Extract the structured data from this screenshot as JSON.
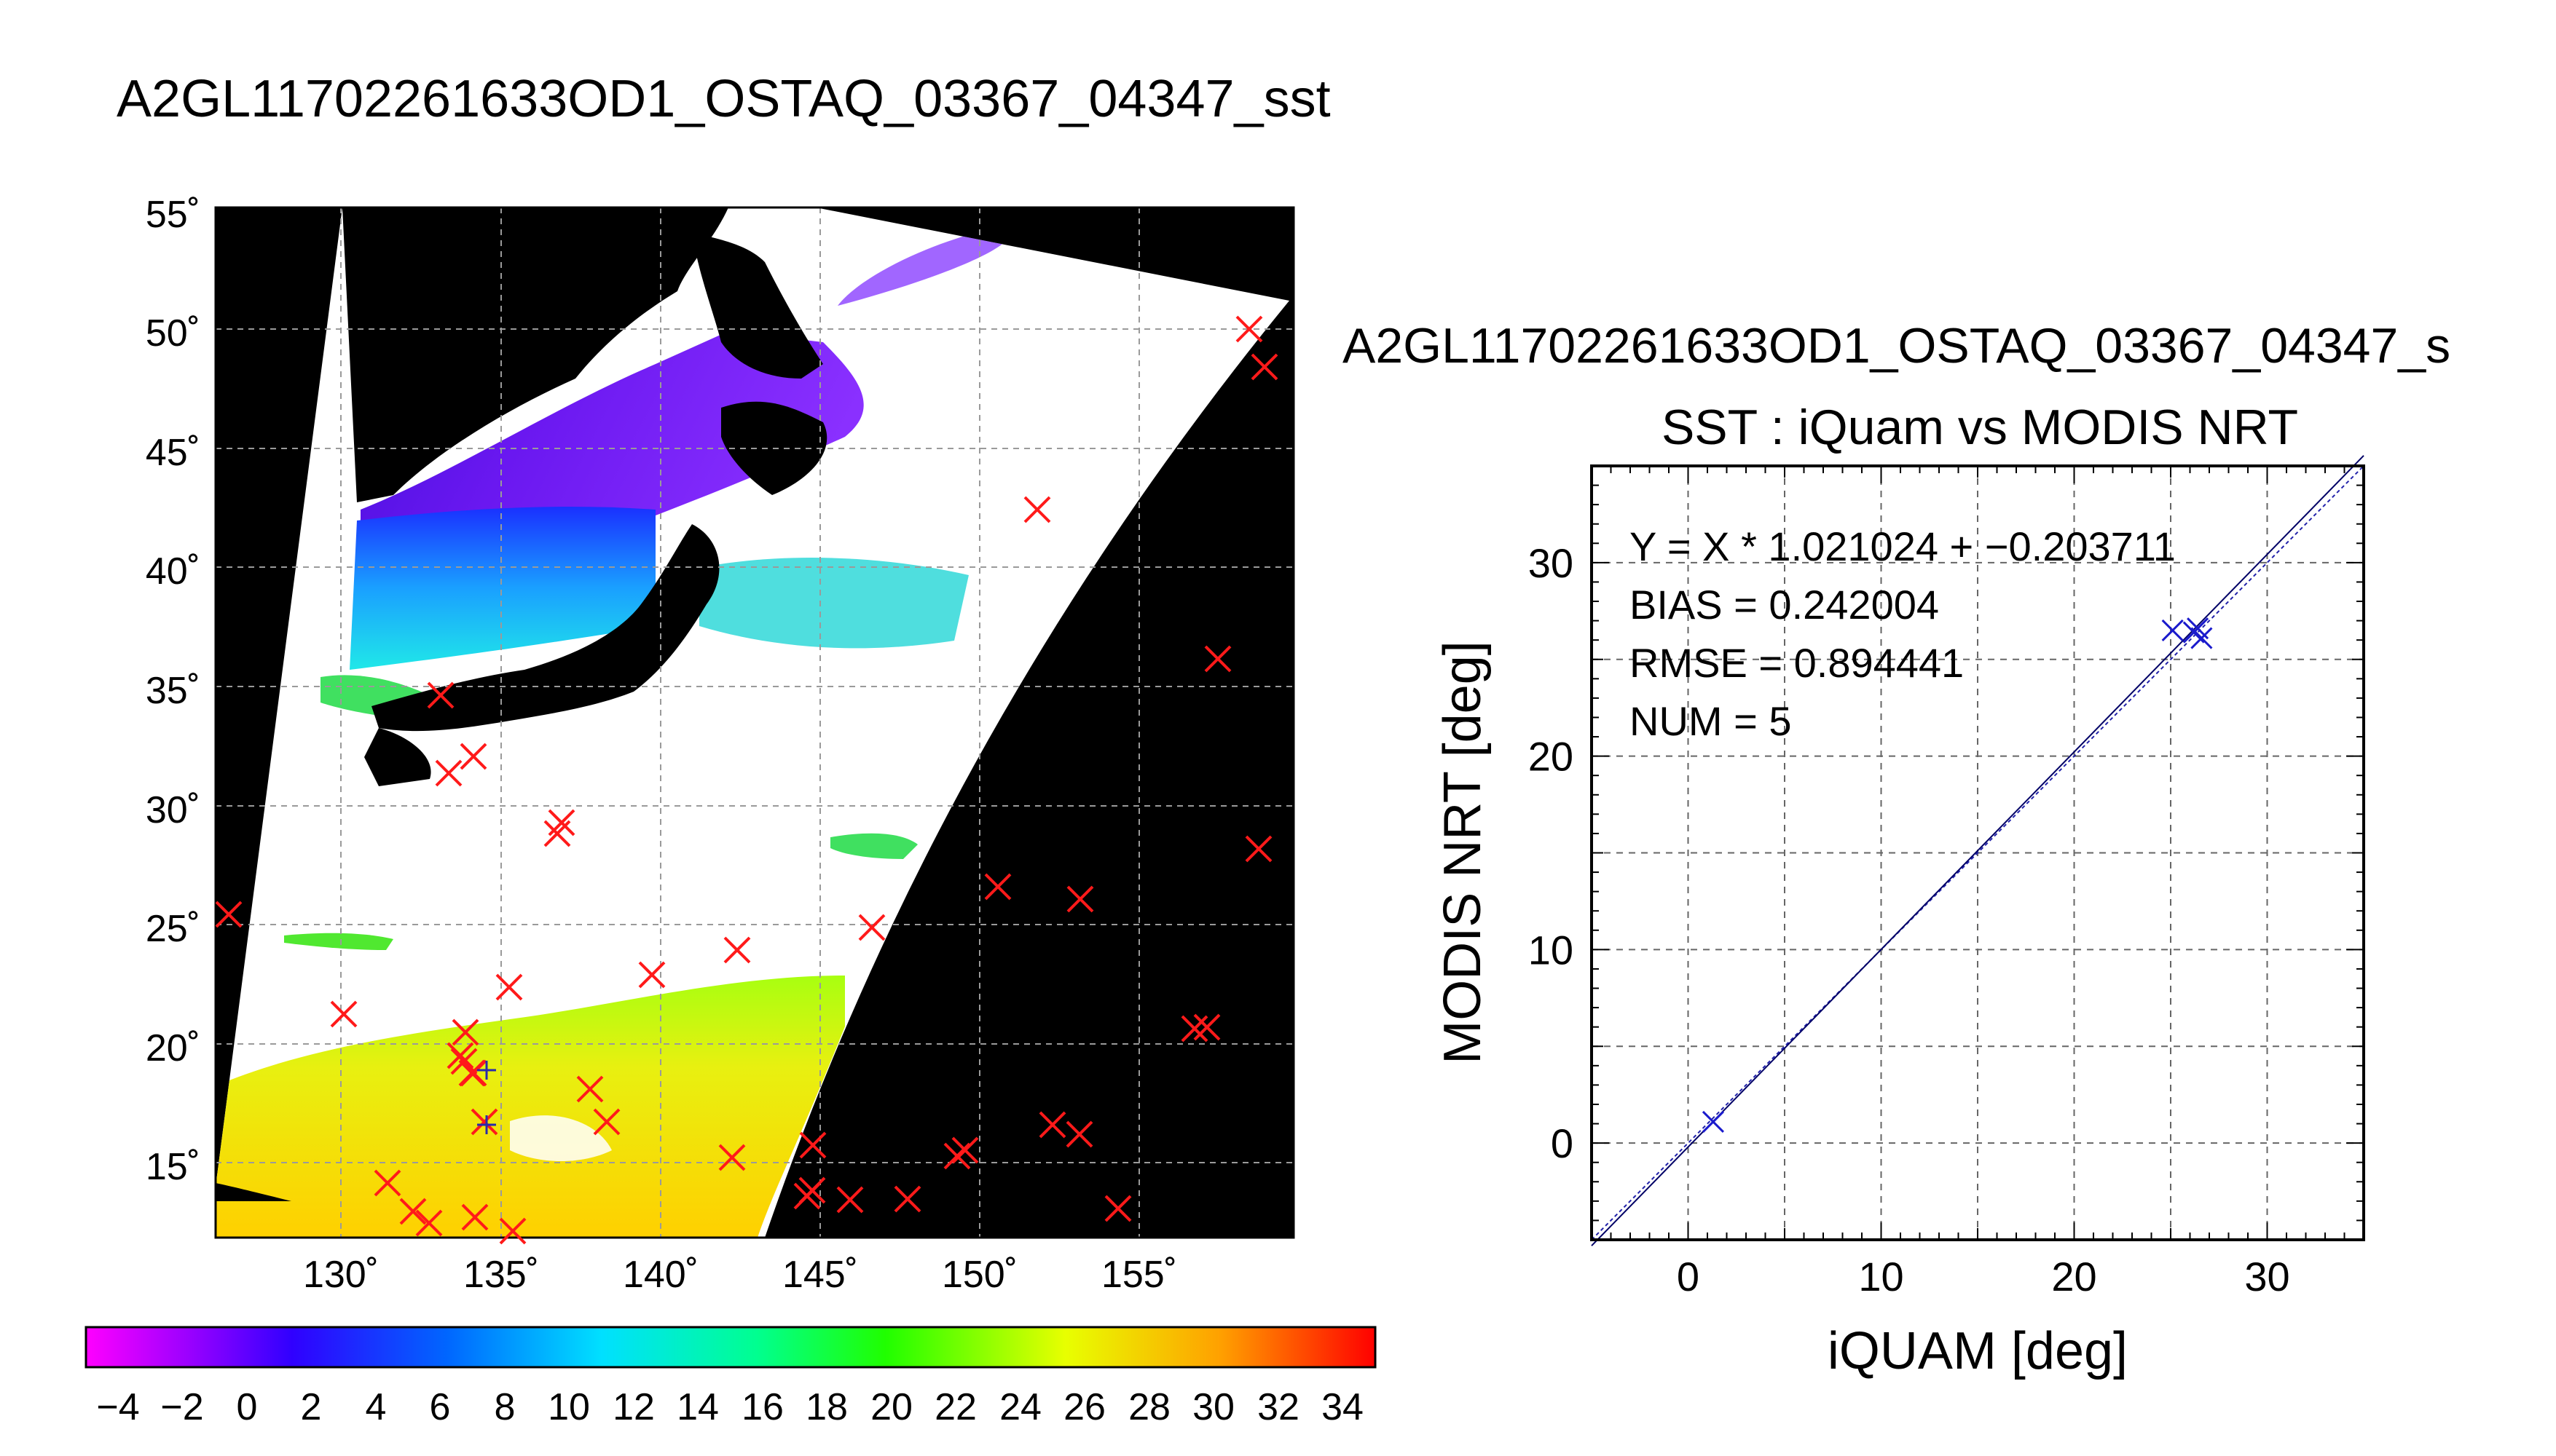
{
  "main_title": "A2GL11702261633OD1_OSTAQ_03367_04347_sst",
  "map": {
    "lat_ticks": [
      "55˚",
      "50˚",
      "45˚",
      "40˚",
      "35˚",
      "30˚",
      "25˚",
      "20˚",
      "15˚"
    ],
    "lon_ticks": [
      "130˚",
      "135˚",
      "140˚",
      "145˚",
      "150˚",
      "155˚"
    ],
    "colorbar_ticks": [
      "−4",
      "−2",
      "0",
      "2",
      "4",
      "6",
      "8",
      "10",
      "12",
      "14",
      "16",
      "18",
      "20",
      "22",
      "24",
      "26",
      "28",
      "30",
      "32",
      "34"
    ],
    "colors": {
      "land": "#000000",
      "nodata": "#ffffff",
      "marker": "#ff1a1a",
      "grid": "#9a9a9a"
    }
  },
  "chart_data": {
    "type": "scatter",
    "title": "A2GL11702261633OD1_OSTAQ_03367_04347_s",
    "subtitle": "SST : iQuam vs MODIS NRT",
    "xlabel": "iQUAM [deg]",
    "ylabel": "MODIS NRT [deg]",
    "xlim": [
      -5,
      35
    ],
    "ylim": [
      -5,
      35
    ],
    "x_ticks": [
      "0",
      "10",
      "20",
      "30"
    ],
    "y_ticks": [
      "0",
      "10",
      "20",
      "30"
    ],
    "grid": true,
    "series": [
      {
        "points": [
          [
            1.3,
            1.1
          ],
          [
            25.1,
            26.5
          ],
          [
            26.4,
            26.6
          ],
          [
            26.6,
            26.1
          ],
          [
            26.2,
            26.4
          ]
        ]
      }
    ],
    "fit_line": {
      "slope": 1.021024,
      "intercept": -0.203711
    },
    "stats": [
      "Y = X * 1.021024 + −0.203711",
      "BIAS = 0.242004",
      "RMSE = 0.894441",
      "NUM = 5"
    ],
    "colors": {
      "points": "#1a1acc",
      "fit": "#000066",
      "identity": "#2222aa"
    }
  }
}
